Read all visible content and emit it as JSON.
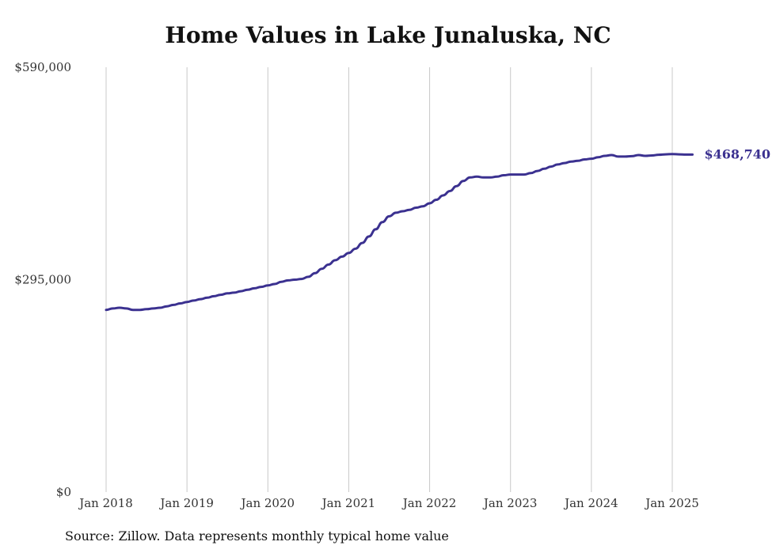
{
  "title": "Home Values in Lake Junaluska, NC",
  "source": "Source: Zillow. Data represents monthly typical home value",
  "colors": {
    "line": "#3b3190",
    "grid": "#c8c8c8",
    "text": "#333333"
  },
  "chart_data": {
    "type": "line",
    "title": "Home Values in Lake Junaluska, NC",
    "xlabel": "",
    "ylabel": "",
    "x_ticks": [
      "Jan 2018",
      "Jan 2019",
      "Jan 2020",
      "Jan 2021",
      "Jan 2022",
      "Jan 2023",
      "Jan 2024",
      "Jan 2025"
    ],
    "y_ticks": [
      {
        "value": 590000,
        "label": "$590,000"
      },
      {
        "value": 295000,
        "label": "$295,000"
      },
      {
        "value": 0,
        "label": "$0"
      }
    ],
    "ylim": [
      0,
      590000
    ],
    "grid": "vertical",
    "end_label": "$468,740",
    "series": [
      {
        "name": "",
        "points": [
          [
            "2018-01",
            253000
          ],
          [
            "2018-02",
            255000
          ],
          [
            "2018-03",
            256000
          ],
          [
            "2018-04",
            255000
          ],
          [
            "2018-05",
            253000
          ],
          [
            "2018-06",
            253000
          ],
          [
            "2018-07",
            254000
          ],
          [
            "2018-08",
            255000
          ],
          [
            "2018-09",
            256000
          ],
          [
            "2018-10",
            258000
          ],
          [
            "2018-11",
            260000
          ],
          [
            "2018-12",
            262000
          ],
          [
            "2019-01",
            264000
          ],
          [
            "2019-02",
            266000
          ],
          [
            "2019-03",
            268000
          ],
          [
            "2019-04",
            270000
          ],
          [
            "2019-05",
            272000
          ],
          [
            "2019-06",
            274000
          ],
          [
            "2019-07",
            276000
          ],
          [
            "2019-08",
            277000
          ],
          [
            "2019-09",
            279000
          ],
          [
            "2019-10",
            281000
          ],
          [
            "2019-11",
            283000
          ],
          [
            "2019-12",
            285000
          ],
          [
            "2020-01",
            287000
          ],
          [
            "2020-02",
            289000
          ],
          [
            "2020-03",
            292000
          ],
          [
            "2020-04",
            294000
          ],
          [
            "2020-05",
            295000
          ],
          [
            "2020-06",
            296000
          ],
          [
            "2020-07",
            299000
          ],
          [
            "2020-08",
            304000
          ],
          [
            "2020-09",
            310000
          ],
          [
            "2020-10",
            316000
          ],
          [
            "2020-11",
            322000
          ],
          [
            "2020-12",
            327000
          ],
          [
            "2021-01",
            332000
          ],
          [
            "2021-02",
            338000
          ],
          [
            "2021-03",
            346000
          ],
          [
            "2021-04",
            355000
          ],
          [
            "2021-05",
            365000
          ],
          [
            "2021-06",
            375000
          ],
          [
            "2021-07",
            383000
          ],
          [
            "2021-08",
            388000
          ],
          [
            "2021-09",
            390000
          ],
          [
            "2021-10",
            392000
          ],
          [
            "2021-11",
            395000
          ],
          [
            "2021-12",
            397000
          ],
          [
            "2022-01",
            401000
          ],
          [
            "2022-02",
            406000
          ],
          [
            "2022-03",
            412000
          ],
          [
            "2022-04",
            418000
          ],
          [
            "2022-05",
            425000
          ],
          [
            "2022-06",
            432000
          ],
          [
            "2022-07",
            437000
          ],
          [
            "2022-08",
            438000
          ],
          [
            "2022-09",
            437000
          ],
          [
            "2022-10",
            437000
          ],
          [
            "2022-11",
            438000
          ],
          [
            "2022-12",
            440000
          ],
          [
            "2023-01",
            441000
          ],
          [
            "2023-02",
            441000
          ],
          [
            "2023-03",
            441000
          ],
          [
            "2023-04",
            443000
          ],
          [
            "2023-05",
            446000
          ],
          [
            "2023-06",
            449000
          ],
          [
            "2023-07",
            452000
          ],
          [
            "2023-08",
            455000
          ],
          [
            "2023-09",
            457000
          ],
          [
            "2023-10",
            459000
          ],
          [
            "2023-11",
            460000
          ],
          [
            "2023-12",
            462000
          ],
          [
            "2024-01",
            463000
          ],
          [
            "2024-02",
            465000
          ],
          [
            "2024-03",
            467000
          ],
          [
            "2024-04",
            468000
          ],
          [
            "2024-05",
            466000
          ],
          [
            "2024-06",
            466000
          ],
          [
            "2024-07",
            466500
          ],
          [
            "2024-08",
            468000
          ],
          [
            "2024-09",
            467000
          ],
          [
            "2024-10",
            467500
          ],
          [
            "2024-11",
            468500
          ],
          [
            "2024-12",
            469000
          ],
          [
            "2025-01",
            469500
          ],
          [
            "2025-02",
            469000
          ],
          [
            "2025-03",
            468740
          ],
          [
            "2025-04",
            468740
          ]
        ]
      }
    ]
  }
}
